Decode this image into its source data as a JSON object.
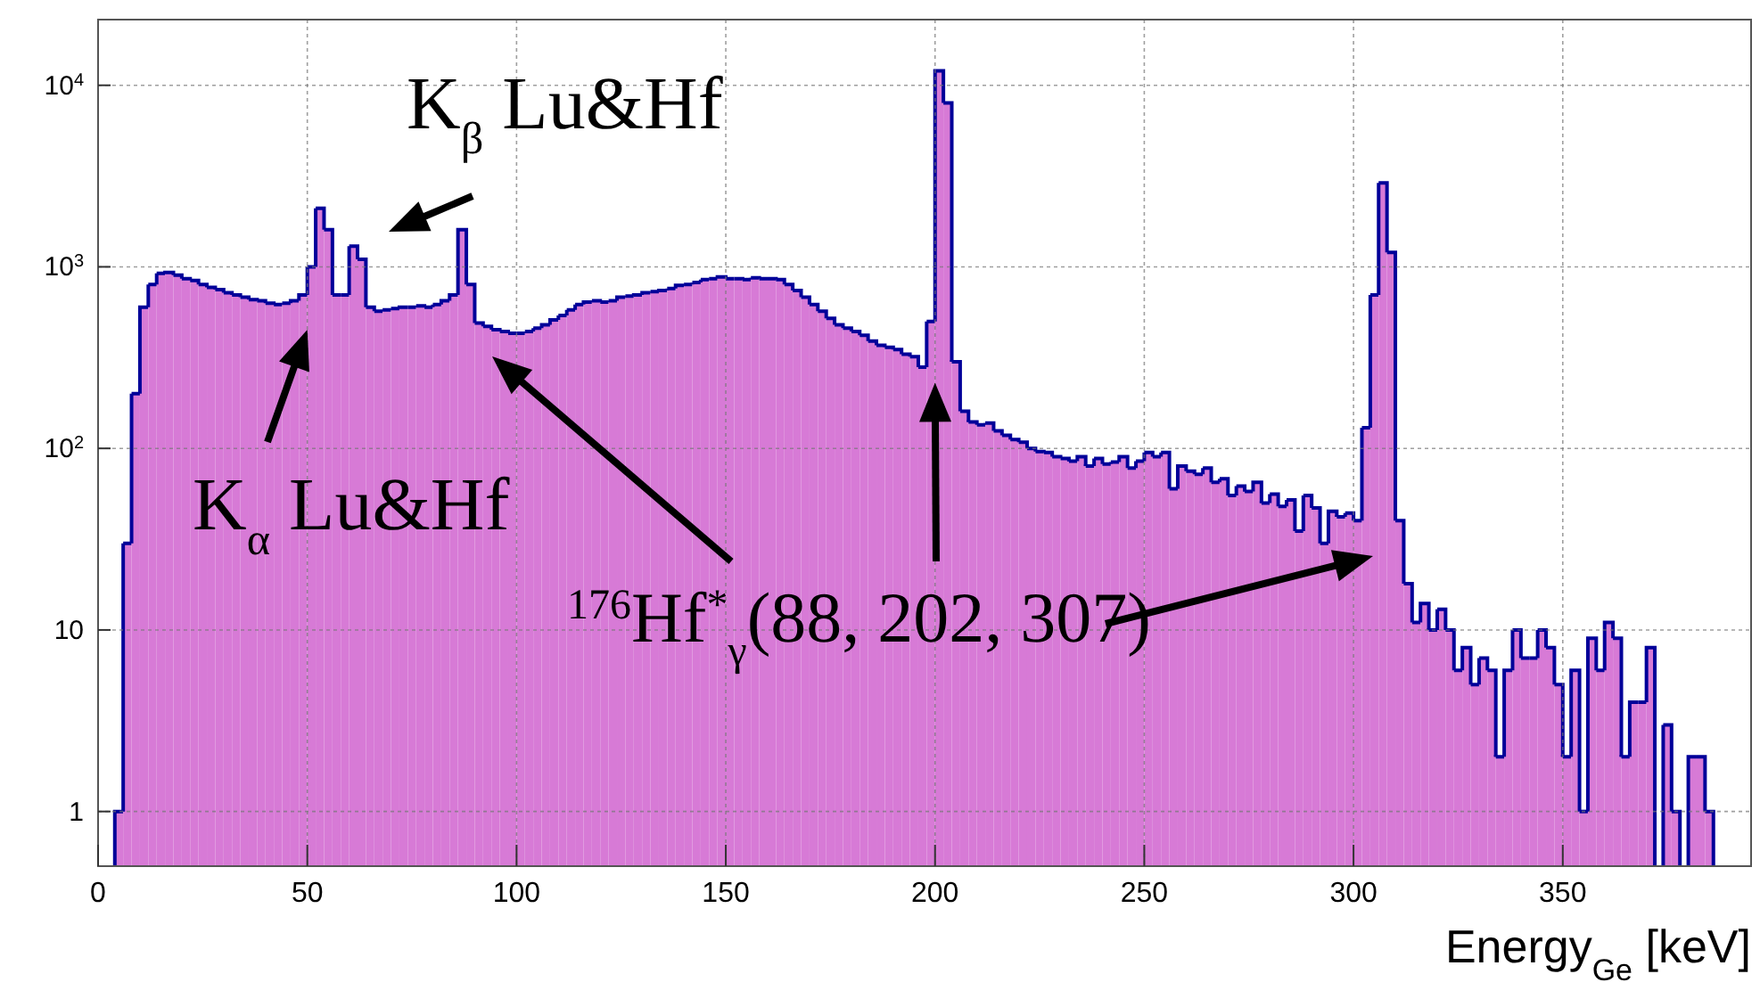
{
  "chart_data": {
    "type": "histogram",
    "xlabel": "Energy$_{Ge}$ [keV]",
    "annotations": [
      "K$_{β}$ Lu&Hf",
      {
        "text": "K$_{α}$ Lu&Hf",
        "x": 50,
        "y": 450
      },
      {
        "text": "$^{176}$Hf$^{*}$$_{γ}$(88, 202, 307)",
        "x": 200,
        "y": 230
      }
    ],
    "bins": [
      4,
      6,
      8,
      10,
      12,
      14,
      16,
      18,
      20,
      22,
      24,
      26,
      28,
      30,
      32,
      34,
      36,
      38,
      40,
      42,
      44,
      46,
      48,
      50,
      52,
      54,
      56,
      58,
      60,
      62,
      64,
      66,
      68,
      70,
      72,
      74,
      76,
      78,
      80,
      82,
      84,
      86,
      88,
      90,
      92,
      94,
      96,
      98,
      100,
      102,
      104,
      106,
      108,
      110,
      112,
      114,
      116,
      118,
      120,
      122,
      124,
      126,
      128,
      130,
      132,
      134,
      136,
      138,
      140,
      142,
      144,
      146,
      148,
      150,
      152,
      154,
      156,
      158,
      160,
      162,
      164,
      166,
      168,
      170,
      172,
      174,
      176,
      178,
      180,
      182,
      184,
      186,
      188,
      190,
      192,
      194,
      196,
      198,
      200,
      202,
      204,
      206,
      208,
      210,
      212,
      214,
      216,
      218,
      220,
      222,
      224,
      226,
      228,
      230,
      232,
      234,
      236,
      238,
      240,
      242,
      244,
      246,
      248,
      250,
      252,
      254,
      256,
      258,
      260,
      262,
      264,
      266,
      268,
      270,
      272,
      274,
      276,
      278,
      280,
      282,
      284,
      286,
      288,
      290,
      292,
      294,
      296,
      298,
      300,
      302,
      304,
      306,
      308,
      310,
      312,
      314,
      316,
      318,
      320,
      322,
      324,
      326,
      328,
      330,
      332,
      334,
      336,
      338,
      340,
      342,
      344,
      346,
      348,
      350,
      352,
      354,
      356,
      358,
      360,
      362,
      364,
      366,
      368,
      370,
      372,
      374,
      376,
      378,
      380,
      382,
      384,
      386
    ],
    "values": [
      1,
      30,
      200,
      600,
      800,
      920,
      930,
      900,
      860,
      840,
      800,
      770,
      750,
      720,
      700,
      680,
      660,
      650,
      630,
      620,
      630,
      650,
      700,
      1000,
      2100,
      1600,
      700,
      700,
      1300,
      1100,
      600,
      570,
      580,
      590,
      600,
      600,
      610,
      600,
      620,
      650,
      700,
      1600,
      800,
      490,
      470,
      450,
      440,
      430,
      430,
      440,
      460,
      480,
      510,
      540,
      580,
      620,
      640,
      650,
      640,
      650,
      680,
      690,
      700,
      720,
      730,
      740,
      760,
      790,
      800,
      820,
      850,
      860,
      880,
      860,
      860,
      850,
      870,
      860,
      860,
      850,
      800,
      740,
      680,
      620,
      570,
      520,
      480,
      460,
      440,
      420,
      390,
      370,
      360,
      350,
      330,
      320,
      280,
      500,
      12000,
      8000,
      300,
      160,
      140,
      135,
      138,
      125,
      118,
      112,
      108,
      100,
      96,
      95,
      90,
      88,
      85,
      90,
      80,
      88,
      82,
      84,
      90,
      78,
      85,
      95,
      90,
      95,
      60,
      80,
      75,
      72,
      78,
      65,
      68,
      55,
      62,
      58,
      65,
      50,
      56,
      48,
      52,
      35,
      55,
      47,
      30,
      45,
      42,
      44,
      40,
      130,
      700,
      2900,
      1200,
      40,
      18,
      11,
      14,
      10,
      13,
      10,
      6,
      8,
      5,
      7,
      6,
      2,
      6,
      10,
      7,
      7,
      10,
      8,
      5,
      2,
      6,
      1,
      9,
      6,
      11,
      9,
      2,
      4,
      4,
      8,
      null,
      3,
      1,
      null,
      2,
      2,
      1
    ],
    "color": "#d77ad6",
    "xlim": [
      0,
      395
    ],
    "xticks": [
      0,
      50,
      100,
      150,
      200,
      250,
      300,
      350
    ],
    "ylim": [
      0.5,
      23000
    ],
    "yticks": [
      1,
      10,
      {
        "value": 100,
        "label": "10$^{2}$"
      },
      {
        "value": 1000,
        "label": "10$^{3}$"
      },
      {
        "value": 10000,
        "label": "10$^{4}$"
      }
    ],
    "log": true,
    "grid": true
  }
}
